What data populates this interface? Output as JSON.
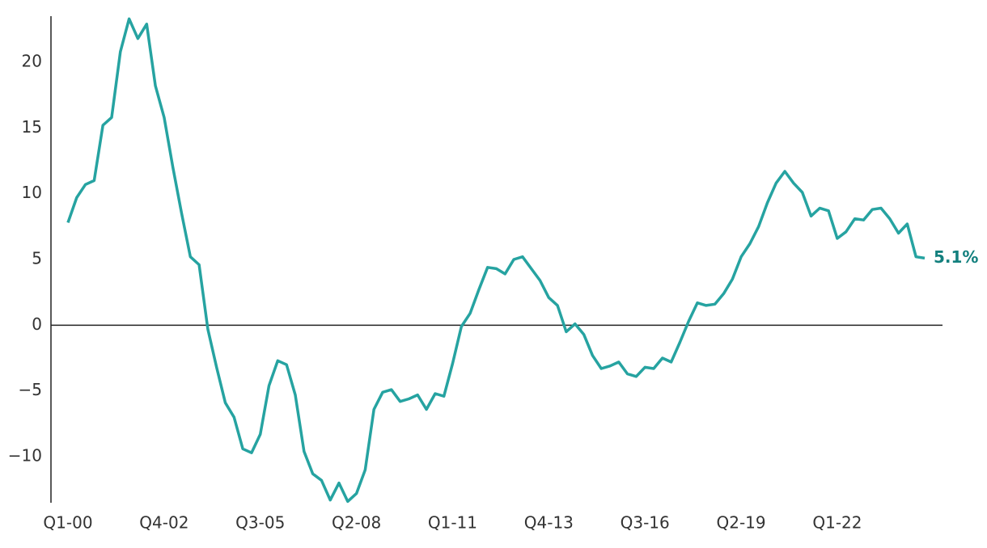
{
  "chart_data": {
    "type": "line",
    "categories": [
      "Q1-00",
      null,
      null,
      null,
      null,
      null,
      null,
      null,
      null,
      null,
      null,
      "Q4-02",
      null,
      null,
      null,
      null,
      null,
      null,
      null,
      null,
      null,
      null,
      "Q3-05",
      null,
      null,
      null,
      null,
      null,
      null,
      null,
      null,
      null,
      null,
      "Q2-08",
      null,
      null,
      null,
      null,
      null,
      null,
      null,
      null,
      null,
      null,
      "Q1-11",
      null,
      null,
      null,
      null,
      null,
      null,
      null,
      null,
      null,
      null,
      "Q4-13",
      null,
      null,
      null,
      null,
      null,
      null,
      null,
      null,
      null,
      null,
      "Q3-16",
      null,
      null,
      null,
      null,
      null,
      null,
      null,
      null,
      null,
      null,
      "Q2-19",
      null,
      null,
      null,
      null,
      null,
      null,
      null,
      null,
      null,
      null,
      "Q1-22",
      null,
      null,
      null,
      null,
      null,
      null,
      null,
      null,
      null,
      null
    ],
    "values": [
      7.8,
      9.7,
      10.7,
      11.0,
      15.2,
      15.8,
      20.8,
      23.3,
      21.8,
      22.9,
      18.2,
      15.8,
      12.0,
      8.5,
      5.2,
      4.6,
      -0.3,
      -3.2,
      -5.9,
      -7.0,
      -9.4,
      -9.7,
      -8.3,
      -4.6,
      -2.7,
      -3.0,
      -5.3,
      -9.6,
      -11.3,
      -11.8,
      -13.3,
      -12.0,
      -13.4,
      -12.8,
      -11.0,
      -6.4,
      -5.1,
      -4.9,
      -5.8,
      -5.6,
      -5.3,
      -6.4,
      -5.2,
      -5.4,
      -2.9,
      -0.1,
      0.9,
      2.7,
      4.4,
      4.3,
      3.9,
      5.0,
      5.2,
      4.3,
      3.4,
      2.1,
      1.5,
      -0.5,
      0.1,
      -0.7,
      -2.3,
      -3.3,
      -3.1,
      -2.8,
      -3.7,
      -3.9,
      -3.2,
      -3.3,
      -2.5,
      -2.8,
      -1.3,
      0.3,
      1.7,
      1.5,
      1.6,
      2.4,
      3.5,
      5.2,
      6.2,
      7.5,
      9.3,
      10.8,
      11.7,
      10.8,
      10.1,
      8.3,
      8.9,
      8.7,
      6.6,
      7.1,
      8.1,
      8.0,
      8.8,
      8.9,
      8.1,
      7.0,
      7.7,
      5.2,
      5.1
    ],
    "value_labels": [
      null,
      null,
      null,
      null,
      null,
      null,
      null,
      null,
      null,
      null,
      null,
      null,
      null,
      null,
      null,
      null,
      null,
      null,
      null,
      null,
      null,
      null,
      null,
      null,
      null,
      null,
      null,
      null,
      null,
      null,
      null,
      null,
      null,
      null,
      null,
      null,
      null,
      null,
      null,
      null,
      null,
      null,
      null,
      null,
      null,
      null,
      null,
      null,
      null,
      null,
      null,
      null,
      null,
      null,
      null,
      null,
      null,
      null,
      null,
      null,
      null,
      null,
      null,
      null,
      null,
      null,
      null,
      null,
      null,
      null,
      null,
      null,
      null,
      null,
      null,
      null,
      null,
      null,
      null,
      null,
      null,
      null,
      null,
      null,
      null,
      null,
      null,
      null,
      null,
      null,
      null,
      null,
      null,
      null,
      null,
      null,
      null,
      null,
      "5.1%"
    ],
    "color": "#26a3a1",
    "label_color": "#13807e",
    "ylim": [
      -13.5,
      23.5
    ],
    "yticks": [
      {
        "value": -10,
        "label": "−10"
      },
      {
        "value": -5,
        "label": "−5"
      },
      0,
      5,
      10,
      15,
      20
    ],
    "grid": false
  }
}
